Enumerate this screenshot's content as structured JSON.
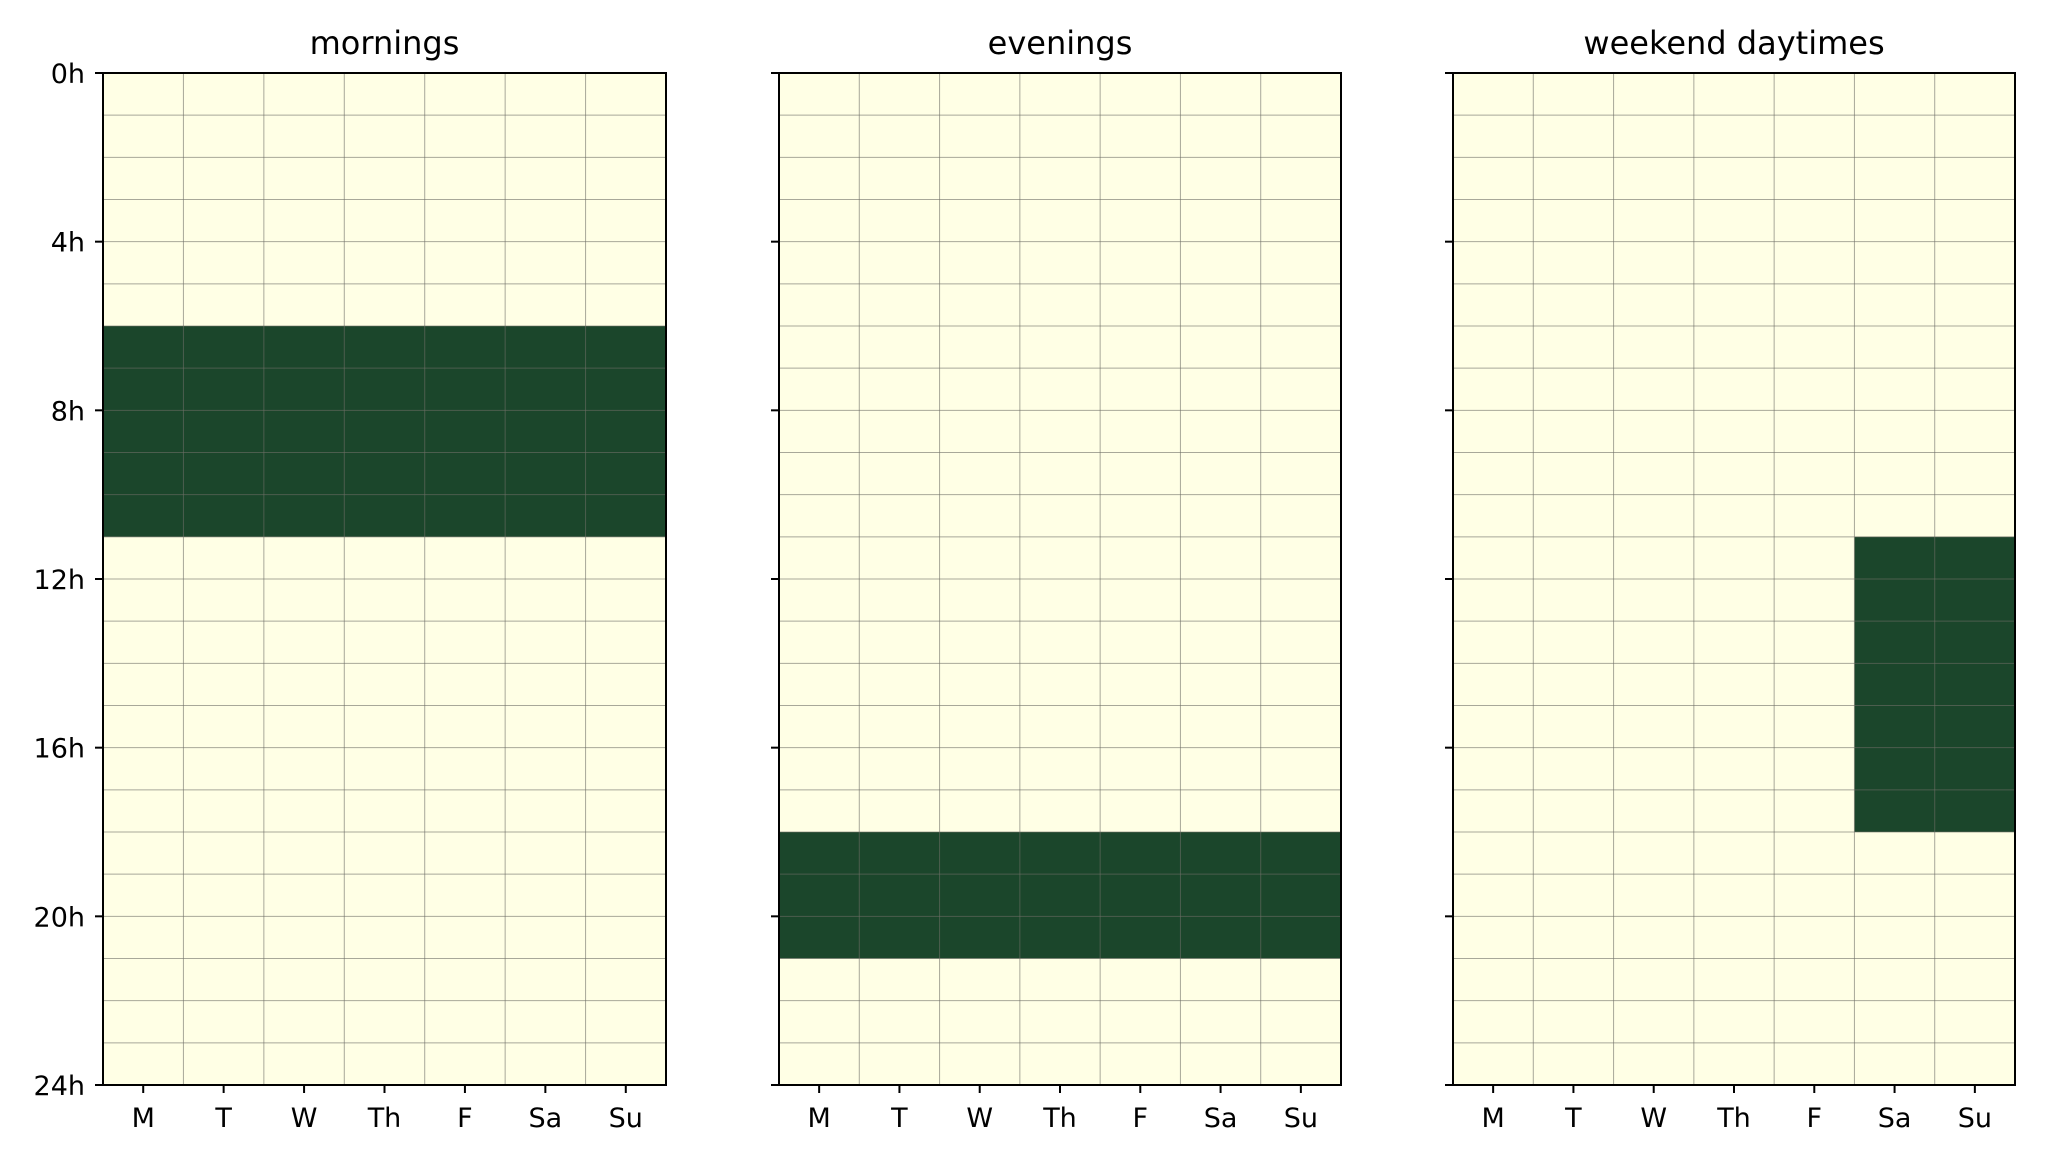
{
  "chart_data": [
    {
      "type": "heatmap",
      "title": "mornings",
      "x_categories": [
        "M",
        "T",
        "W",
        "Th",
        "F",
        "Sa",
        "Su"
      ],
      "y_ticks": [
        "0h",
        "4h",
        "8h",
        "12h",
        "16h",
        "20h",
        "24h"
      ],
      "ylim": [
        0,
        24
      ],
      "active": [
        {
          "days": [
            "M",
            "T",
            "W",
            "Th",
            "F",
            "Sa",
            "Su"
          ],
          "from_hour": 6,
          "to_hour": 11
        }
      ],
      "grid": true
    },
    {
      "type": "heatmap",
      "title": "evenings",
      "x_categories": [
        "M",
        "T",
        "W",
        "Th",
        "F",
        "Sa",
        "Su"
      ],
      "y_ticks": [
        "0h",
        "4h",
        "8h",
        "12h",
        "16h",
        "20h",
        "24h"
      ],
      "ylim": [
        0,
        24
      ],
      "active": [
        {
          "days": [
            "M",
            "T",
            "W",
            "Th",
            "F",
            "Sa",
            "Su"
          ],
          "from_hour": 18,
          "to_hour": 21
        }
      ],
      "grid": true
    },
    {
      "type": "heatmap",
      "title": "weekend daytimes",
      "x_categories": [
        "M",
        "T",
        "W",
        "Th",
        "F",
        "Sa",
        "Su"
      ],
      "y_ticks": [
        "0h",
        "4h",
        "8h",
        "12h",
        "16h",
        "20h",
        "24h"
      ],
      "ylim": [
        0,
        24
      ],
      "active": [
        {
          "days": [
            "Sa",
            "Su"
          ],
          "from_hour": 11,
          "to_hour": 18
        }
      ],
      "grid": true
    }
  ],
  "colors": {
    "inactive": "#ffffe5",
    "active": "#1b462b",
    "grid": "#6e6e66",
    "axis": "#000000"
  }
}
